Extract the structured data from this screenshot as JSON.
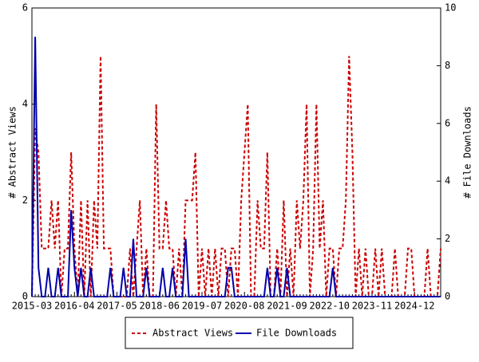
{
  "chart_data": {
    "type": "line",
    "categories": [
      "2015-03",
      null,
      null,
      null,
      null,
      null,
      null,
      null,
      null,
      null,
      null,
      null,
      null,
      "2016-04",
      null,
      null,
      null,
      null,
      null,
      null,
      null,
      null,
      null,
      null,
      null,
      null,
      "2017-05",
      null,
      null,
      null,
      null,
      null,
      null,
      null,
      null,
      null,
      null,
      null,
      null,
      "2018-06",
      null,
      null,
      null,
      null,
      null,
      null,
      null,
      null,
      null,
      null,
      null,
      null,
      "2019-07",
      null,
      null,
      null,
      null,
      null,
      null,
      null,
      null,
      null,
      null,
      null,
      null,
      "2020-08",
      null,
      null,
      null,
      null,
      null,
      null,
      null,
      null,
      null,
      null,
      null,
      null,
      "2021-09",
      null,
      null,
      null,
      null,
      null,
      null,
      null,
      null,
      null,
      null,
      null,
      null,
      "2022-10",
      null,
      null,
      null,
      null,
      null,
      null,
      null,
      null,
      null,
      null,
      null,
      null,
      "2023-11",
      null,
      null,
      null,
      null,
      null,
      null,
      null,
      null,
      null,
      null,
      null,
      null,
      "2024-12",
      null,
      null,
      null,
      null,
      null,
      null,
      null,
      null
    ],
    "series": [
      {
        "name": "Abstract Views",
        "color": "#cc0000",
        "dash": true,
        "values": [
          0,
          3.5,
          3,
          1,
          1,
          1,
          2,
          1,
          2,
          0,
          1,
          1,
          3,
          1,
          0,
          2,
          0,
          2,
          0,
          2,
          1,
          5,
          1,
          1,
          1,
          0,
          0,
          0,
          0,
          0,
          1,
          0,
          1,
          2,
          0,
          1,
          0,
          0,
          4,
          1,
          1,
          2,
          1,
          1,
          0,
          1,
          0,
          2,
          2,
          2,
          3,
          0,
          1,
          0,
          1,
          0,
          1,
          0,
          1,
          1,
          0,
          1,
          1,
          0,
          2,
          3,
          4,
          0,
          0,
          2,
          1,
          1,
          3,
          0,
          0,
          1,
          0,
          2,
          0,
          1,
          0,
          2,
          1,
          2,
          4,
          0,
          1,
          4,
          1,
          2,
          0,
          1,
          1,
          0,
          1,
          1,
          2,
          5,
          3,
          0,
          1,
          0,
          1,
          0,
          0,
          1,
          0,
          1,
          0,
          0,
          0,
          1,
          0,
          0,
          0,
          1,
          1,
          0,
          0,
          0,
          0,
          1,
          0,
          0,
          0,
          1
        ]
      },
      {
        "name": "File Downloads",
        "color": "#0000aa",
        "axis": "y2",
        "dash": false,
        "values": [
          0,
          9,
          1,
          0,
          0,
          1,
          0,
          0,
          1,
          0,
          0,
          0,
          3,
          1,
          0,
          1,
          0,
          0,
          1,
          0,
          0,
          0,
          0,
          0,
          1,
          0,
          0,
          0,
          1,
          0,
          0,
          2,
          0,
          0,
          0,
          1,
          0,
          0,
          0,
          0,
          1,
          0,
          0,
          1,
          0,
          0,
          0,
          2,
          0,
          0,
          0,
          0,
          0,
          0,
          0,
          0,
          0,
          0,
          0,
          0,
          1,
          1,
          0,
          0,
          0,
          0,
          0,
          0,
          0,
          0,
          0,
          0,
          1,
          0,
          0,
          1,
          0,
          0,
          1,
          0,
          0,
          0,
          0,
          0,
          0,
          0,
          0,
          0,
          0,
          0,
          0,
          0,
          1,
          0,
          0,
          0,
          0,
          0,
          0,
          0,
          0,
          0,
          0,
          0,
          0,
          0,
          0,
          0,
          0,
          0,
          0,
          0,
          0,
          0,
          0,
          0,
          0,
          0,
          0,
          0,
          0,
          0,
          0,
          0,
          0,
          0
        ]
      }
    ],
    "y_label": "# Abstract Views",
    "y2_label": "# File Downloads",
    "ylim": [
      0,
      6
    ],
    "yticks": [
      0,
      2,
      4,
      6
    ],
    "y2lim": [
      0,
      10
    ],
    "y2ticks": [
      0,
      2,
      4,
      6,
      8,
      10
    ],
    "legend": "bottom"
  }
}
